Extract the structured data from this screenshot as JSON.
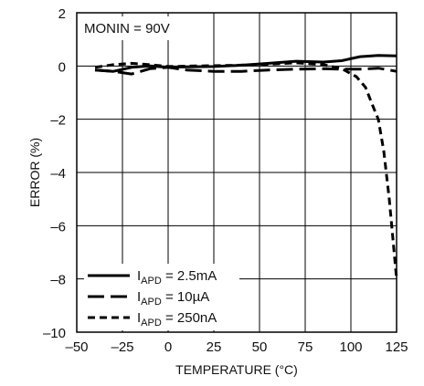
{
  "chart_data": {
    "type": "line",
    "title": "",
    "xlabel": "TEMPERATURE (°C)",
    "ylabel": "ERROR (%)",
    "xlim": [
      -50,
      125
    ],
    "ylim": [
      -10,
      2
    ],
    "xticks": [
      -50,
      -25,
      0,
      25,
      50,
      75,
      100,
      125
    ],
    "yticks": [
      2,
      0,
      -2,
      -4,
      -6,
      -8,
      -10
    ],
    "xtick_labels": [
      "–50",
      "–25",
      "0",
      "25",
      "50",
      "75",
      "100",
      "125"
    ],
    "ytick_labels": [
      "2",
      "0",
      "–2",
      "–4",
      "–6",
      "–8",
      "–10"
    ],
    "grid": true,
    "annotation": "MONIN = 90V",
    "legend_position": "bottom-left",
    "series": [
      {
        "label_main": "I",
        "label_sub": "APD",
        "label_rest": " = 2.5mA",
        "style": "solid",
        "points": [
          [
            -40,
            -0.15
          ],
          [
            -30,
            -0.2
          ],
          [
            -20,
            -0.05
          ],
          [
            -10,
            0.0
          ],
          [
            0,
            -0.05
          ],
          [
            10,
            -0.03
          ],
          [
            25,
            -0.02
          ],
          [
            40,
            0.03
          ],
          [
            55,
            0.1
          ],
          [
            70,
            0.18
          ],
          [
            85,
            0.15
          ],
          [
            95,
            0.2
          ],
          [
            105,
            0.35
          ],
          [
            115,
            0.4
          ],
          [
            125,
            0.38
          ]
        ]
      },
      {
        "label_main": "I",
        "label_sub": "APD",
        "label_rest": " = 10µA",
        "style": "longdash",
        "points": [
          [
            -40,
            -0.15
          ],
          [
            -30,
            -0.2
          ],
          [
            -20,
            -0.3
          ],
          [
            -10,
            -0.1
          ],
          [
            0,
            -0.05
          ],
          [
            10,
            -0.15
          ],
          [
            25,
            -0.2
          ],
          [
            40,
            -0.2
          ],
          [
            55,
            -0.15
          ],
          [
            70,
            -0.12
          ],
          [
            85,
            -0.1
          ],
          [
            95,
            -0.12
          ],
          [
            105,
            -0.12
          ],
          [
            115,
            -0.08
          ],
          [
            125,
            -0.2
          ]
        ]
      },
      {
        "label_main": "I",
        "label_sub": "APD",
        "label_rest": " = 250nA",
        "style": "shortdash",
        "points": [
          [
            -40,
            -0.05
          ],
          [
            -30,
            0.05
          ],
          [
            -20,
            0.1
          ],
          [
            -10,
            0.05
          ],
          [
            0,
            -0.02
          ],
          [
            15,
            0.0
          ],
          [
            30,
            0.02
          ],
          [
            50,
            0.05
          ],
          [
            70,
            0.12
          ],
          [
            85,
            0.05
          ],
          [
            95,
            -0.1
          ],
          [
            103,
            -0.4
          ],
          [
            108,
            -0.8
          ],
          [
            112,
            -1.5
          ],
          [
            115,
            -2.0
          ],
          [
            118,
            -3.2
          ],
          [
            121,
            -5.0
          ],
          [
            123,
            -6.5
          ],
          [
            125,
            -8.0
          ]
        ]
      }
    ]
  }
}
